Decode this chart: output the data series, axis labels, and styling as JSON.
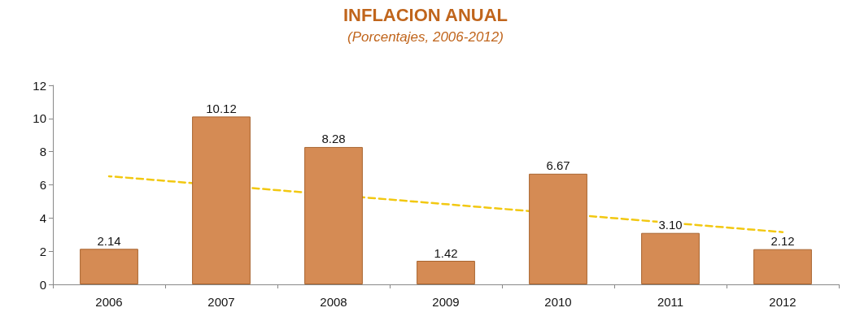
{
  "chart_data": {
    "type": "bar",
    "title": "INFLACION ANUAL",
    "subtitle": "(Porcentajes, 2006-2012)",
    "categories": [
      "2006",
      "2007",
      "2008",
      "2009",
      "2010",
      "2011",
      "2012"
    ],
    "series": [
      {
        "color": "#d58b54",
        "values": [
          2.14,
          10.12,
          8.28,
          1.42,
          6.67,
          3.1,
          2.12
        ],
        "value_labels": [
          "2.14",
          "10.12",
          "8.28",
          "1.42",
          "6.67",
          "3.10",
          "2.12"
        ]
      },
      {
        "type": "line",
        "color": "#f2c811",
        "values": [
          6.52,
          null,
          null,
          null,
          null,
          null,
          3.15
        ],
        "line_style": "dashed",
        "marker": "none"
      }
    ],
    "ylim": [
      0,
      12
    ],
    "yticks": [
      0,
      2,
      4,
      6,
      8,
      10,
      12
    ],
    "grid": false
  }
}
